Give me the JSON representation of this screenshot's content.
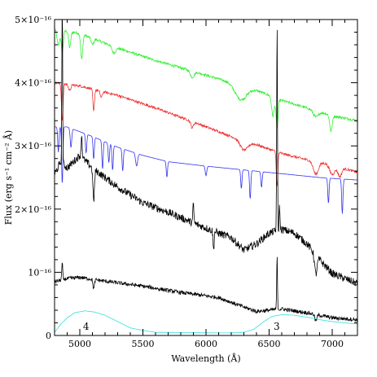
{
  "chart_data": {
    "type": "line",
    "xlabel": "Wavelength (Å)",
    "ylabel": "Flux (erg s⁻¹ cm⁻² Å)",
    "xlim": [
      4800,
      7200
    ],
    "ylim": [
      0,
      5e-16
    ],
    "grid": false,
    "x_ticks": [
      {
        "value": 5000,
        "label": "5000"
      },
      {
        "value": 5500,
        "label": "5500"
      },
      {
        "value": 6000,
        "label": "6000"
      },
      {
        "value": 6500,
        "label": "6500"
      },
      {
        "value": 7000,
        "label": "7000"
      }
    ],
    "y_ticks": [
      {
        "value": 0,
        "label": "0"
      },
      {
        "value": 1e-16,
        "label": "10⁻¹⁶"
      },
      {
        "value": 2e-16,
        "label": "2×10⁻¹⁶"
      },
      {
        "value": 3e-16,
        "label": "3×10⁻¹⁶"
      },
      {
        "value": 4e-16,
        "label": "4×10⁻¹⁶"
      },
      {
        "value": 5e-16,
        "label": "5×10⁻¹⁶"
      }
    ],
    "annotations": [
      {
        "text": "4",
        "x": 5050,
        "y": 9e-18
      },
      {
        "text": "3",
        "x": 6560,
        "y": 9e-18
      }
    ],
    "series": [
      {
        "color": "#33ee33",
        "continuum": [
          [
            4800,
            4.85
          ],
          [
            5000,
            4.78
          ],
          [
            5300,
            4.55
          ],
          [
            5600,
            4.35
          ],
          [
            5900,
            4.18
          ],
          [
            6200,
            4.0
          ],
          [
            6400,
            3.88
          ],
          [
            6600,
            3.72
          ],
          [
            6800,
            3.6
          ],
          [
            7000,
            3.48
          ],
          [
            7200,
            3.4
          ]
        ],
        "lines": [
          [
            4830,
            0.25,
            10
          ],
          [
            4861,
            0.35,
            8
          ],
          [
            4920,
            0.25,
            8
          ],
          [
            5015,
            0.4,
            8
          ],
          [
            5100,
            0.1,
            10
          ],
          [
            5270,
            0.1,
            15
          ],
          [
            5890,
            0.1,
            15
          ],
          [
            6260,
            0.15,
            40
          ],
          [
            6300,
            0.1,
            40
          ],
          [
            6530,
            0.3,
            10
          ],
          [
            6563,
            0.45,
            8
          ],
          [
            6870,
            0.1,
            20
          ],
          [
            6990,
            0.25,
            10
          ]
        ],
        "noise": 0.02
      },
      {
        "color": "#ee3333",
        "continuum": [
          [
            4800,
            4.0
          ],
          [
            5000,
            3.95
          ],
          [
            5300,
            3.8
          ],
          [
            5600,
            3.6
          ],
          [
            5900,
            3.38
          ],
          [
            6200,
            3.15
          ],
          [
            6400,
            3.02
          ],
          [
            6600,
            2.88
          ],
          [
            6800,
            2.78
          ],
          [
            7000,
            2.7
          ],
          [
            7200,
            2.58
          ]
        ],
        "lines": [
          [
            4861,
            0.6,
            6
          ],
          [
            4920,
            0.1,
            8
          ],
          [
            5110,
            0.35,
            6
          ],
          [
            5170,
            0.1,
            8
          ],
          [
            5890,
            0.1,
            10
          ],
          [
            6300,
            0.15,
            30
          ],
          [
            6563,
            0.55,
            6
          ],
          [
            6870,
            0.2,
            20
          ],
          [
            7000,
            0.15,
            20
          ],
          [
            7060,
            0.15,
            15
          ]
        ],
        "noise": 0.02
      },
      {
        "color": "#3333ee",
        "continuum": [
          [
            4800,
            3.3
          ],
          [
            4900,
            3.3
          ],
          [
            5100,
            3.15
          ],
          [
            5300,
            2.98
          ],
          [
            5500,
            2.85
          ],
          [
            5700,
            2.75
          ],
          [
            6000,
            2.68
          ],
          [
            6300,
            2.62
          ],
          [
            6600,
            2.56
          ],
          [
            6900,
            2.5
          ],
          [
            7200,
            2.46
          ]
        ],
        "lines": [
          [
            4830,
            0.4,
            5
          ],
          [
            4861,
            0.9,
            5
          ],
          [
            4930,
            0.3,
            6
          ],
          [
            5050,
            0.3,
            5
          ],
          [
            5110,
            0.35,
            5
          ],
          [
            5180,
            0.45,
            5
          ],
          [
            5230,
            0.3,
            5
          ],
          [
            5260,
            0.4,
            5
          ],
          [
            5340,
            0.35,
            5
          ],
          [
            5450,
            0.2,
            8
          ],
          [
            5690,
            0.25,
            5
          ],
          [
            6000,
            0.15,
            6
          ],
          [
            6280,
            0.3,
            5
          ],
          [
            6350,
            0.45,
            5
          ],
          [
            6440,
            0.25,
            5
          ],
          [
            6970,
            0.4,
            5
          ],
          [
            7080,
            0.55,
            5
          ]
        ],
        "noise": 0.0
      },
      {
        "color": "#000000",
        "continuum": [
          [
            4800,
            2.55
          ],
          [
            4850,
            2.75
          ],
          [
            4900,
            2.65
          ],
          [
            5000,
            2.85
          ],
          [
            5100,
            2.65
          ],
          [
            5200,
            2.5
          ],
          [
            5300,
            2.35
          ],
          [
            5500,
            2.1
          ],
          [
            5700,
            1.95
          ],
          [
            5900,
            1.78
          ],
          [
            6100,
            1.62
          ],
          [
            6200,
            1.55
          ],
          [
            6300,
            1.35
          ],
          [
            6400,
            1.45
          ],
          [
            6500,
            1.62
          ],
          [
            6600,
            1.68
          ],
          [
            6700,
            1.62
          ],
          [
            6800,
            1.45
          ],
          [
            6900,
            1.2
          ],
          [
            7000,
            0.98
          ],
          [
            7100,
            0.9
          ],
          [
            7200,
            0.82
          ]
        ],
        "lines": [
          [
            4861,
            -2.6,
            3
          ],
          [
            5015,
            -0.35,
            4
          ],
          [
            5110,
            0.5,
            6
          ],
          [
            5900,
            -0.3,
            4
          ],
          [
            6563,
            -3.3,
            3
          ],
          [
            6583,
            -0.4,
            3
          ],
          [
            6060,
            0.3,
            4
          ],
          [
            6870,
            0.3,
            10
          ]
        ],
        "noise": 0.06
      },
      {
        "color": "#000000",
        "continuum": [
          [
            4800,
            0.85
          ],
          [
            4900,
            0.9
          ],
          [
            5000,
            0.92
          ],
          [
            5200,
            0.86
          ],
          [
            5500,
            0.78
          ],
          [
            5800,
            0.68
          ],
          [
            6100,
            0.6
          ],
          [
            6300,
            0.45
          ],
          [
            6400,
            0.38
          ],
          [
            6500,
            0.4
          ],
          [
            6600,
            0.42
          ],
          [
            6800,
            0.36
          ],
          [
            7000,
            0.28
          ],
          [
            7200,
            0.25
          ]
        ],
        "lines": [
          [
            4861,
            -0.25,
            4
          ],
          [
            5110,
            0.15,
            6
          ],
          [
            6563,
            -0.85,
            3
          ],
          [
            6870,
            0.1,
            8
          ]
        ],
        "noise": 0.03
      },
      {
        "color": "#33dddd",
        "continuum": [
          [
            4800,
            0.05
          ],
          [
            4850,
            0.18
          ],
          [
            4900,
            0.28
          ],
          [
            4960,
            0.36
          ],
          [
            5040,
            0.39
          ],
          [
            5120,
            0.37
          ],
          [
            5200,
            0.32
          ],
          [
            5300,
            0.22
          ],
          [
            5400,
            0.12
          ],
          [
            5500,
            0.08
          ],
          [
            5600,
            0.05
          ],
          [
            6100,
            0.04
          ],
          [
            6200,
            0.04
          ],
          [
            6300,
            0.05
          ],
          [
            6380,
            0.1
          ],
          [
            6460,
            0.22
          ],
          [
            6520,
            0.3
          ],
          [
            6600,
            0.33
          ],
          [
            6700,
            0.32
          ],
          [
            6800,
            0.29
          ],
          [
            6900,
            0.25
          ],
          [
            7000,
            0.22
          ],
          [
            7100,
            0.2
          ],
          [
            7200,
            0.18
          ]
        ],
        "lines": [],
        "noise": 0.0
      }
    ]
  }
}
